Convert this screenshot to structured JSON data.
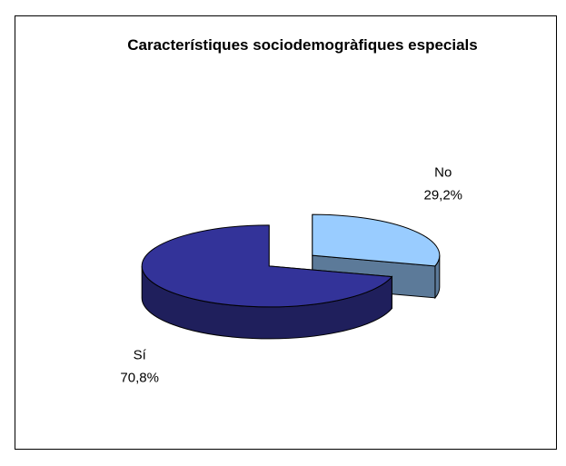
{
  "chart_data": {
    "type": "pie",
    "title": "Característiques sociodemogràfiques especials",
    "categories": [
      "No",
      "Sí"
    ],
    "values": [
      29.2,
      70.8
    ],
    "value_labels": [
      "29,2%",
      "70,8%"
    ],
    "colors": [
      "#99ccff",
      "#333399"
    ],
    "three_d": true,
    "exploded": true
  }
}
